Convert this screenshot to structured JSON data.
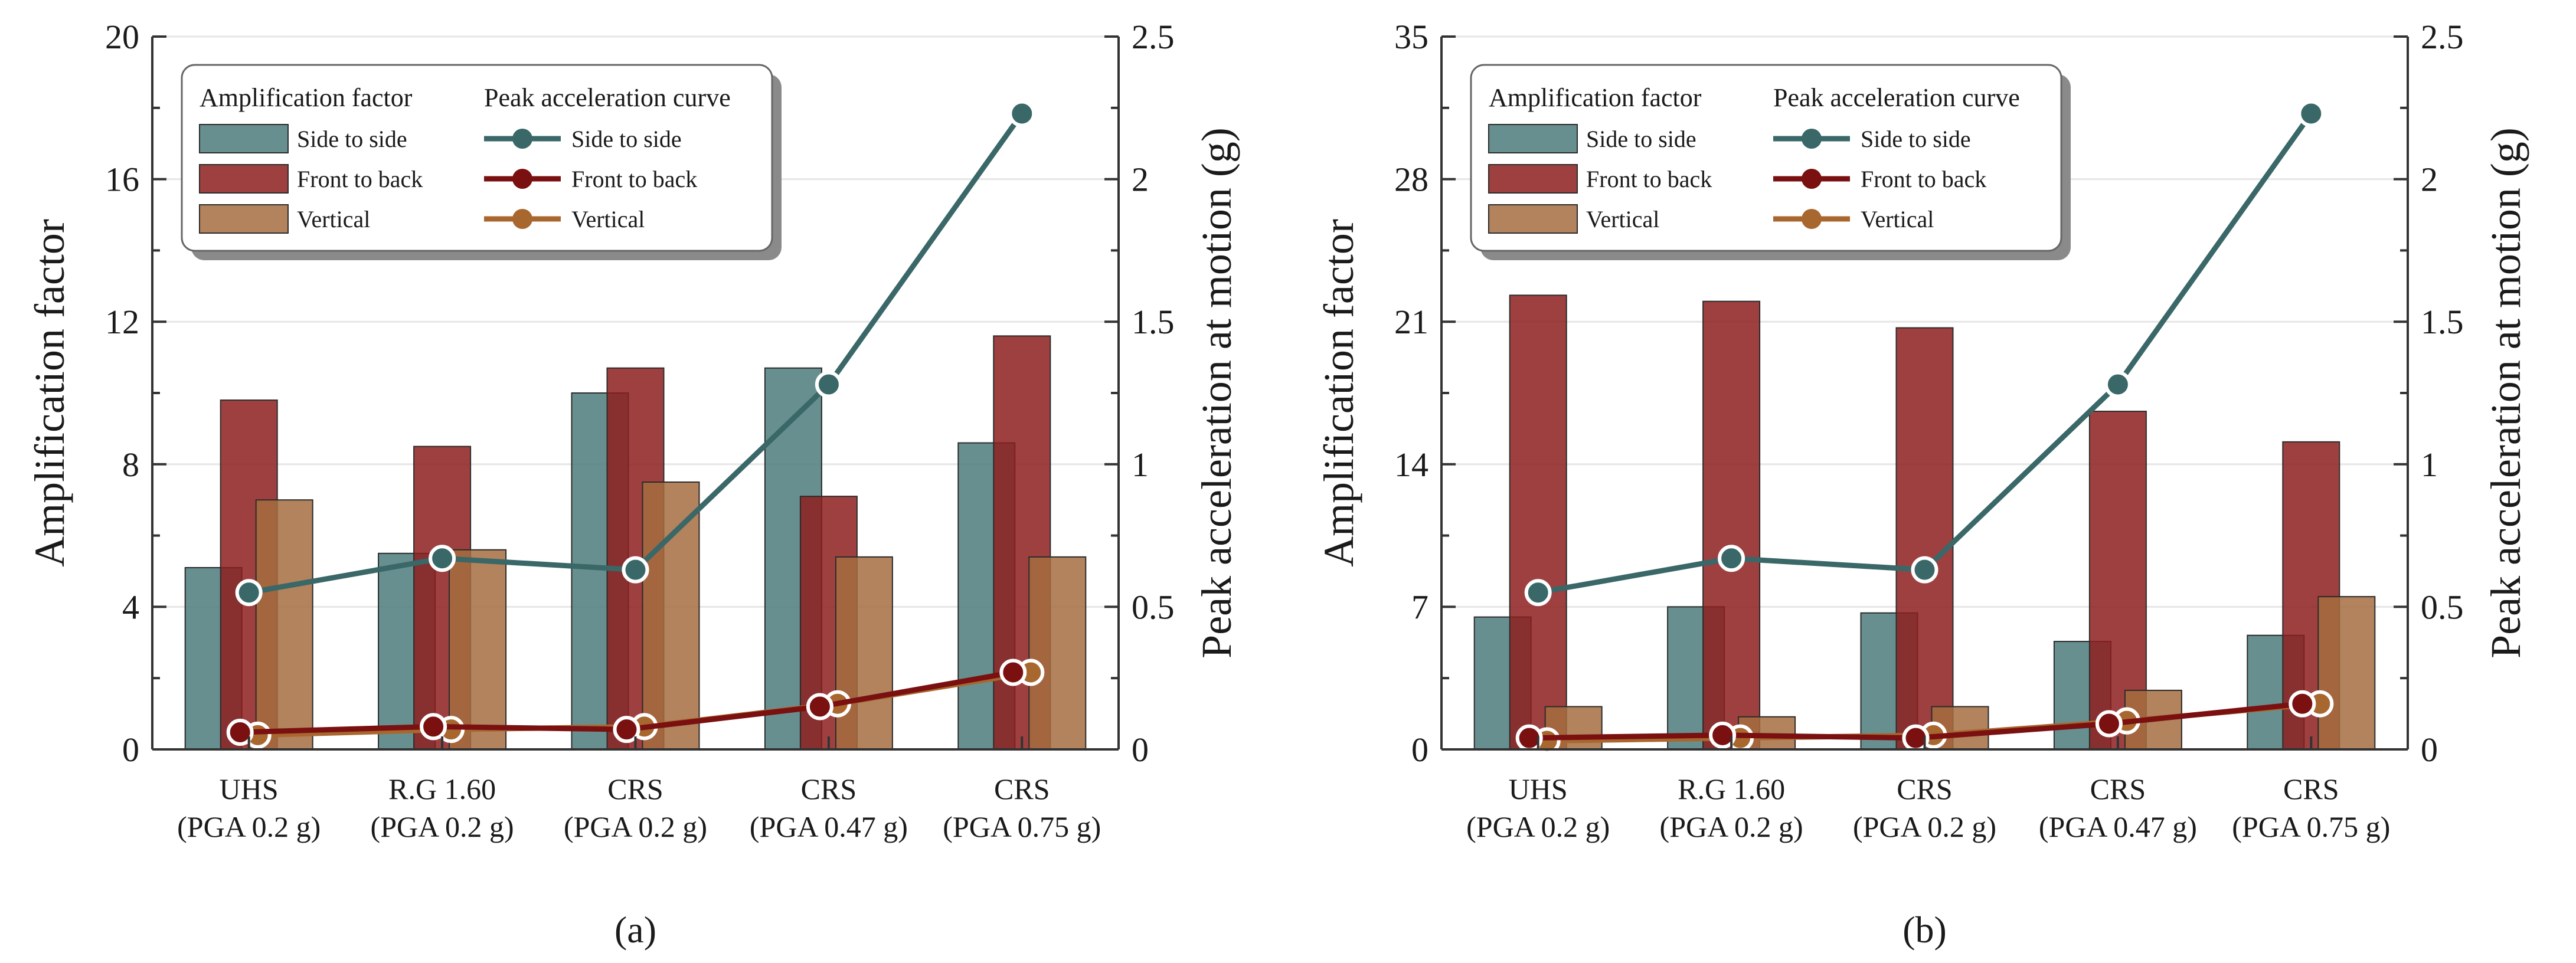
{
  "colors": {
    "side": "#4e7b7b",
    "front": "#8e1f1f",
    "vertical": "#a46d3f",
    "side_line": "#3a6767",
    "front_line": "#7a1010",
    "vertical_line": "#a8672e"
  },
  "legend": {
    "bars_heading": "Amplification factor",
    "lines_heading": "Peak acceleration curve",
    "side": "Side to side",
    "front": "Front to back",
    "vertical": "Vertical"
  },
  "chart_data": [
    {
      "type": "bar",
      "panel_label": "(a)",
      "categories": [
        [
          "UHS",
          "(PGA 0.2 g)"
        ],
        [
          "R.G 1.60",
          "(PGA 0.2 g)"
        ],
        [
          "CRS",
          "(PGA 0.2 g)"
        ],
        [
          "CRS",
          "(PGA 0.47 g)"
        ],
        [
          "CRS",
          "(PGA 0.75 g)"
        ]
      ],
      "ylabel": "Amplification factor",
      "y2label": "Peak acceleration at motion (g)",
      "ylim": [
        0,
        20
      ],
      "yticks": [
        "0",
        "4",
        "8",
        "12",
        "16",
        "20"
      ],
      "y2lim": [
        0,
        2.5
      ],
      "y2ticks": [
        "0",
        "0.5",
        "1",
        "1.5",
        "2",
        "2.5"
      ],
      "grid": true,
      "legend_position": "top-left",
      "bar_series": [
        {
          "name": "Side to side",
          "values": [
            5.1,
            5.5,
            10.0,
            10.7,
            8.6
          ]
        },
        {
          "name": "Front to back",
          "values": [
            9.8,
            8.5,
            10.7,
            7.1,
            11.6
          ]
        },
        {
          "name": "Vertical",
          "values": [
            7.0,
            5.6,
            7.5,
            5.4,
            5.4
          ]
        }
      ],
      "line_series": [
        {
          "name": "Side to side",
          "values": [
            0.55,
            0.67,
            0.63,
            1.28,
            2.23
          ]
        },
        {
          "name": "Front to back",
          "values": [
            0.06,
            0.08,
            0.07,
            0.15,
            0.27
          ]
        },
        {
          "name": "Vertical",
          "values": [
            0.05,
            0.07,
            0.08,
            0.16,
            0.27
          ]
        }
      ]
    },
    {
      "type": "bar",
      "panel_label": "(b)",
      "categories": [
        [
          "UHS",
          "(PGA 0.2 g)"
        ],
        [
          "R.G 1.60",
          "(PGA 0.2 g)"
        ],
        [
          "CRS",
          "(PGA 0.2 g)"
        ],
        [
          "CRS",
          "(PGA 0.47 g)"
        ],
        [
          "CRS",
          "(PGA 0.75 g)"
        ]
      ],
      "ylabel": "Amplification factor",
      "y2label": "Peak acceleration at motion (g)",
      "ylim": [
        0,
        35
      ],
      "yticks": [
        "0",
        "7",
        "14",
        "21",
        "28",
        "35"
      ],
      "y2lim": [
        0,
        2.5
      ],
      "y2ticks": [
        "0",
        "0.5",
        "1",
        "1.5",
        "2",
        "2.5"
      ],
      "grid": true,
      "legend_position": "top-left",
      "bar_series": [
        {
          "name": "Side to side",
          "values": [
            6.5,
            7.0,
            6.7,
            5.3,
            5.6
          ]
        },
        {
          "name": "Front to back",
          "values": [
            22.3,
            22.0,
            20.7,
            16.6,
            15.1
          ]
        },
        {
          "name": "Vertical",
          "values": [
            2.1,
            1.6,
            2.1,
            2.9,
            7.5
          ]
        }
      ],
      "line_series": [
        {
          "name": "Side to side",
          "values": [
            0.55,
            0.67,
            0.63,
            1.28,
            2.23
          ]
        },
        {
          "name": "Front to back",
          "values": [
            0.04,
            0.05,
            0.04,
            0.09,
            0.16
          ]
        },
        {
          "name": "Vertical",
          "values": [
            0.03,
            0.04,
            0.05,
            0.1,
            0.16
          ]
        }
      ]
    }
  ]
}
